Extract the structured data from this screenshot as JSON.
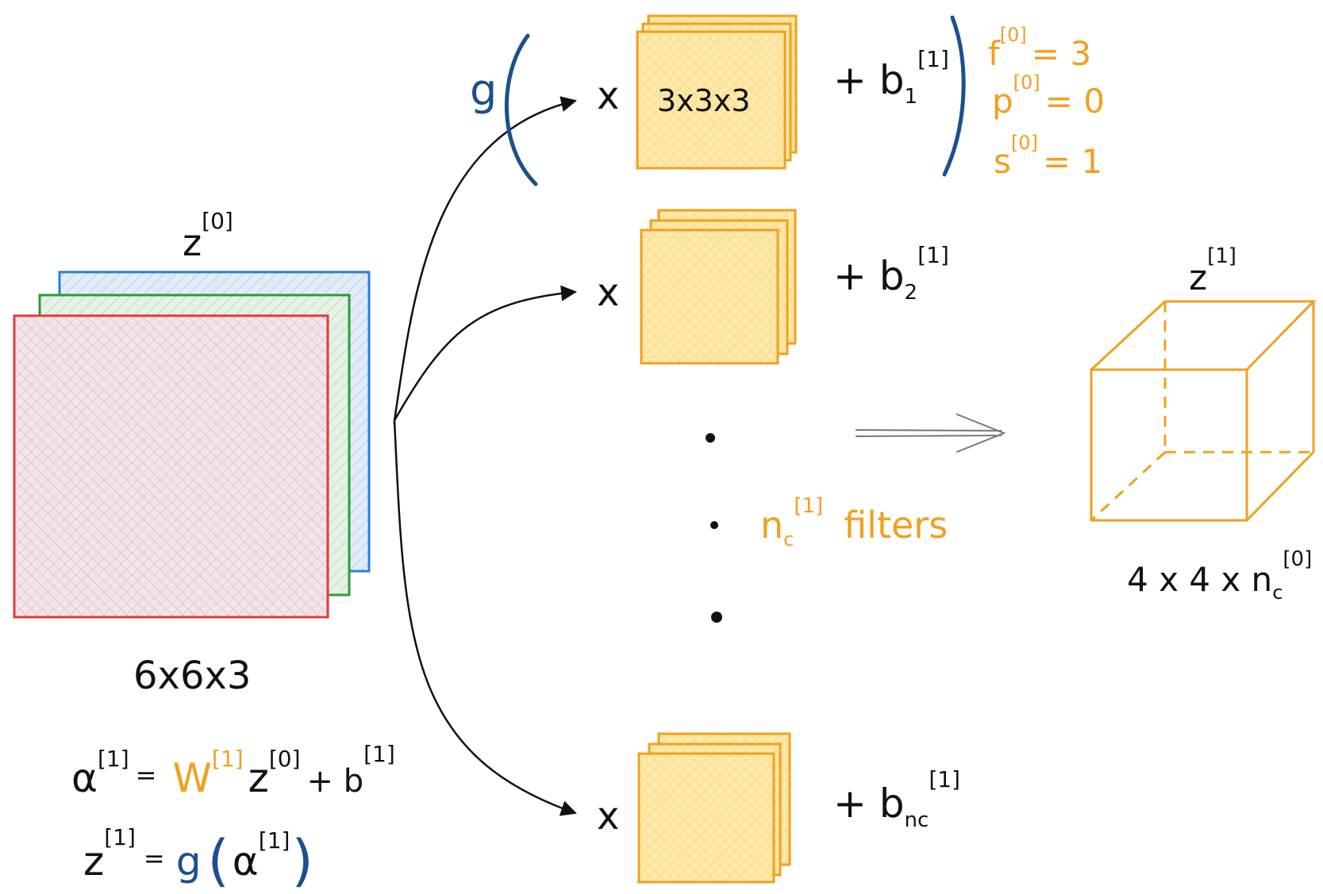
{
  "colors": {
    "ink": "#111111",
    "orange": "#f0a020",
    "filter_fill": "#fde8a8",
    "blue": "#1b4f8f",
    "input_red": "#e03a3a",
    "input_green": "#2f9a3c",
    "input_blue": "#2d7fd0",
    "input_fill": "#e9dde6"
  },
  "input": {
    "label_base": "z",
    "label_sup": "[0]",
    "dims": "6x6x3"
  },
  "activation": {
    "g": "g"
  },
  "filters": [
    {
      "dims": "3x3x3",
      "op": "x",
      "bias_prefix": "+ b",
      "bias_sub": "1",
      "bias_sup": "[1]"
    },
    {
      "dims": "",
      "op": "x",
      "bias_prefix": "+ b",
      "bias_sub": "2",
      "bias_sup": "[1]"
    },
    {
      "dims": "",
      "op": "x",
      "bias_prefix": "+ b",
      "bias_sub": "nc",
      "bias_sup": "[1]"
    }
  ],
  "hyperparams": [
    {
      "name": "f",
      "sup": "[0]",
      "value": "= 3"
    },
    {
      "name": "p",
      "sup": "[0]",
      "value": "= 0"
    },
    {
      "name": "s",
      "sup": "[0]",
      "value": "= 1"
    }
  ],
  "filters_label": {
    "n": "n",
    "sub": "c",
    "sup": "[1]",
    "text": "filters"
  },
  "output": {
    "label_base": "z",
    "label_sup": "[1]",
    "dims_prefix": "4 x 4 x n",
    "dims_sub": "c",
    "dims_sup": "[0]"
  },
  "formula1": {
    "lhs": "α",
    "lhs_sup": "[1]",
    "eq": "=",
    "w": "W",
    "w_sup": "[1]",
    "z": "z",
    "z_sup": "[0]",
    "plus_b": "+ b",
    "b_sup": "[1]"
  },
  "formula2": {
    "lhs": "z",
    "lhs_sup": "[1]",
    "eq": "=",
    "g": "g",
    "open": "(",
    "alpha": "α",
    "alpha_sup": "[1]",
    "close": ")"
  }
}
